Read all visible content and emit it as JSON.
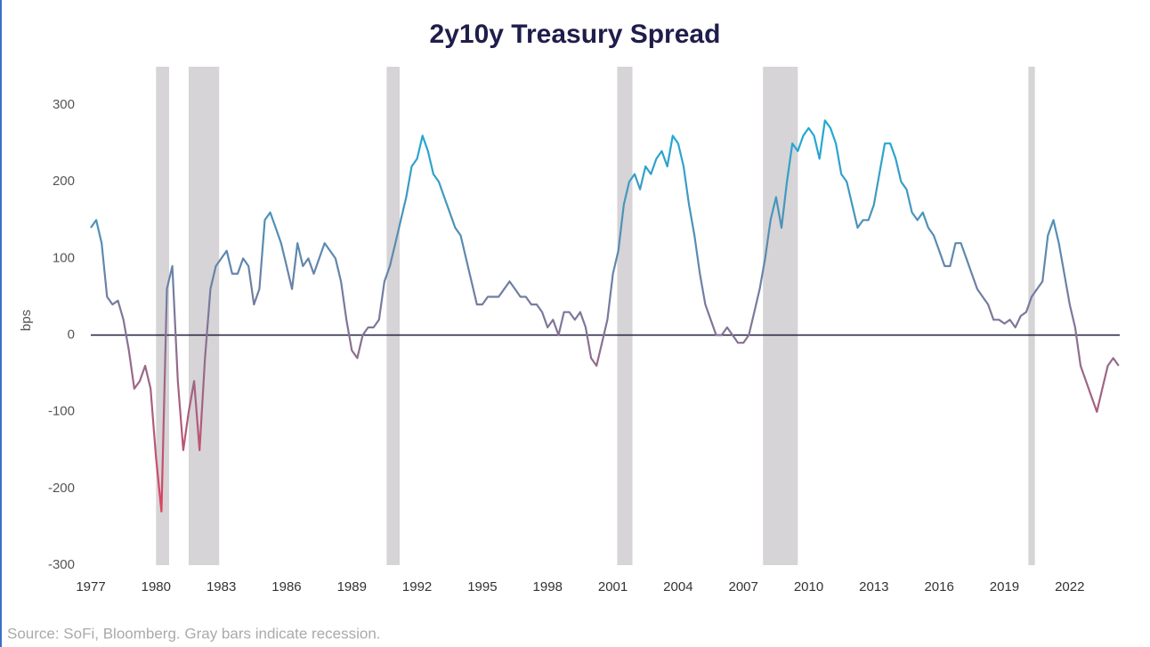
{
  "chart_data": {
    "type": "line",
    "title": "2y10y Treasury Spread",
    "y_label": "bps",
    "source": "Source: SoFi, Bloomberg. Gray bars indicate recession.",
    "xlim": [
      1977,
      2024.3
    ],
    "ylim": [
      -300,
      350
    ],
    "xticks": [
      1977,
      1980,
      1983,
      1986,
      1989,
      1992,
      1995,
      1998,
      2001,
      2004,
      2007,
      2010,
      2013,
      2016,
      2019,
      2022
    ],
    "yticks": [
      300,
      200,
      100,
      0,
      -100,
      -200,
      -300
    ],
    "color_low": "#e0415c",
    "color_high": "#25a8d2",
    "recession_color": "#d6d4d6",
    "recessions": [
      [
        1980.0,
        1980.6
      ],
      [
        1981.5,
        1982.9
      ],
      [
        1990.6,
        1991.2
      ],
      [
        2001.2,
        2001.9
      ],
      [
        2007.9,
        2009.5
      ],
      [
        2020.1,
        2020.4
      ]
    ],
    "x": [
      1977,
      1977.25,
      1977.5,
      1977.75,
      1978,
      1978.25,
      1978.5,
      1978.75,
      1979,
      1979.25,
      1979.5,
      1979.75,
      1980,
      1980.25,
      1980.5,
      1980.75,
      1981,
      1981.25,
      1981.5,
      1981.75,
      1982,
      1982.25,
      1982.5,
      1982.75,
      1983,
      1983.25,
      1983.5,
      1983.75,
      1984,
      1984.25,
      1984.5,
      1984.75,
      1985,
      1985.25,
      1985.5,
      1985.75,
      1986,
      1986.25,
      1986.5,
      1986.75,
      1987,
      1987.25,
      1987.5,
      1987.75,
      1988,
      1988.25,
      1988.5,
      1988.75,
      1989,
      1989.25,
      1989.5,
      1989.75,
      1990,
      1990.25,
      1990.5,
      1990.75,
      1991,
      1991.25,
      1991.5,
      1991.75,
      1992,
      1992.25,
      1992.5,
      1992.75,
      1993,
      1993.25,
      1993.5,
      1993.75,
      1994,
      1994.25,
      1994.5,
      1994.75,
      1995,
      1995.25,
      1995.5,
      1995.75,
      1996,
      1996.25,
      1996.5,
      1996.75,
      1997,
      1997.25,
      1997.5,
      1997.75,
      1998,
      1998.25,
      1998.5,
      1998.75,
      1999,
      1999.25,
      1999.5,
      1999.75,
      2000,
      2000.25,
      2000.5,
      2000.75,
      2001,
      2001.25,
      2001.5,
      2001.75,
      2002,
      2002.25,
      2002.5,
      2002.75,
      2003,
      2003.25,
      2003.5,
      2003.75,
      2004,
      2004.25,
      2004.5,
      2004.75,
      2005,
      2005.25,
      2005.5,
      2005.75,
      2006,
      2006.25,
      2006.5,
      2006.75,
      2007,
      2007.25,
      2007.5,
      2007.75,
      2008,
      2008.25,
      2008.5,
      2008.75,
      2009,
      2009.25,
      2009.5,
      2009.75,
      2010,
      2010.25,
      2010.5,
      2010.75,
      2011,
      2011.25,
      2011.5,
      2011.75,
      2012,
      2012.25,
      2012.5,
      2012.75,
      2013,
      2013.25,
      2013.5,
      2013.75,
      2014,
      2014.25,
      2014.5,
      2014.75,
      2015,
      2015.25,
      2015.5,
      2015.75,
      2016,
      2016.25,
      2016.5,
      2016.75,
      2017,
      2017.25,
      2017.5,
      2017.75,
      2018,
      2018.25,
      2018.5,
      2018.75,
      2019,
      2019.25,
      2019.5,
      2019.75,
      2020,
      2020.25,
      2020.5,
      2020.75,
      2021,
      2021.25,
      2021.5,
      2021.75,
      2022,
      2022.25,
      2022.5,
      2022.75,
      2023,
      2023.25,
      2023.5,
      2023.75,
      2024,
      2024.25
    ],
    "values": [
      140,
      150,
      120,
      50,
      40,
      45,
      20,
      -20,
      -70,
      -60,
      -40,
      -70,
      -160,
      -230,
      60,
      90,
      -60,
      -150,
      -100,
      -60,
      -150,
      -30,
      60,
      90,
      100,
      110,
      80,
      80,
      100,
      90,
      40,
      60,
      150,
      160,
      140,
      120,
      90,
      60,
      120,
      90,
      100,
      80,
      100,
      120,
      110,
      100,
      70,
      20,
      -20,
      -30,
      0,
      10,
      10,
      20,
      70,
      90,
      120,
      150,
      180,
      220,
      230,
      260,
      240,
      210,
      200,
      180,
      160,
      140,
      130,
      100,
      70,
      40,
      40,
      50,
      50,
      50,
      60,
      70,
      60,
      50,
      50,
      40,
      40,
      30,
      10,
      20,
      0,
      30,
      30,
      20,
      30,
      10,
      -30,
      -40,
      -10,
      20,
      80,
      110,
      170,
      200,
      210,
      190,
      220,
      210,
      230,
      240,
      220,
      260,
      250,
      220,
      170,
      130,
      80,
      40,
      20,
      0,
      0,
      10,
      0,
      -10,
      -10,
      0,
      30,
      60,
      100,
      150,
      180,
      140,
      200,
      250,
      240,
      260,
      270,
      260,
      230,
      280,
      270,
      250,
      210,
      200,
      170,
      140,
      150,
      150,
      170,
      210,
      250,
      250,
      230,
      200,
      190,
      160,
      150,
      160,
      140,
      130,
      110,
      90,
      90,
      120,
      120,
      100,
      80,
      60,
      50,
      40,
      20,
      20,
      15,
      20,
      10,
      25,
      30,
      50,
      60,
      70,
      130,
      150,
      120,
      80,
      40,
      10,
      -40,
      -60,
      -80,
      -100,
      -70,
      -40,
      -30,
      -40
    ]
  }
}
